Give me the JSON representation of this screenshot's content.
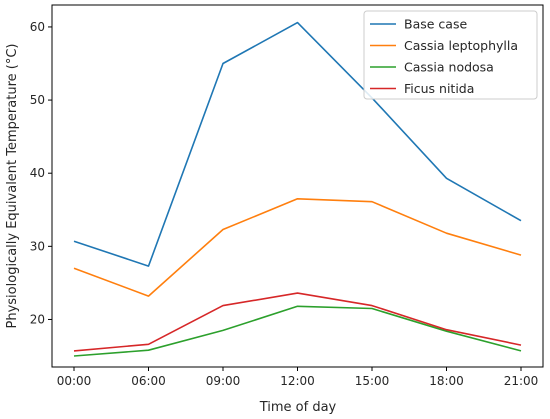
{
  "chart_data": {
    "type": "line",
    "title": "",
    "xlabel": "Time of day",
    "ylabel": "Physiologically Equivalent Temperature (°C)",
    "categories": [
      "00:00",
      "06:00",
      "09:00",
      "12:00",
      "15:00",
      "18:00",
      "21:00"
    ],
    "ylim": [
      13.5,
      63
    ],
    "yticks": [
      20,
      30,
      40,
      50,
      60
    ],
    "grid": false,
    "legend_position": "top-right",
    "series": [
      {
        "name": "Base case",
        "color": "#1f77b4",
        "values": [
          30.7,
          27.3,
          55.0,
          60.6,
          50.3,
          39.3,
          33.5
        ]
      },
      {
        "name": "Cassia leptophylla",
        "color": "#ff7f0e",
        "values": [
          27.0,
          23.2,
          32.3,
          36.5,
          36.1,
          31.8,
          28.8
        ]
      },
      {
        "name": "Cassia nodosa",
        "color": "#2ca02c",
        "values": [
          15.0,
          15.8,
          18.5,
          21.8,
          21.5,
          18.4,
          15.7
        ]
      },
      {
        "name": "Ficus nitida",
        "color": "#d62728",
        "values": [
          15.7,
          16.6,
          21.9,
          23.6,
          21.9,
          18.6,
          16.5
        ]
      }
    ]
  }
}
